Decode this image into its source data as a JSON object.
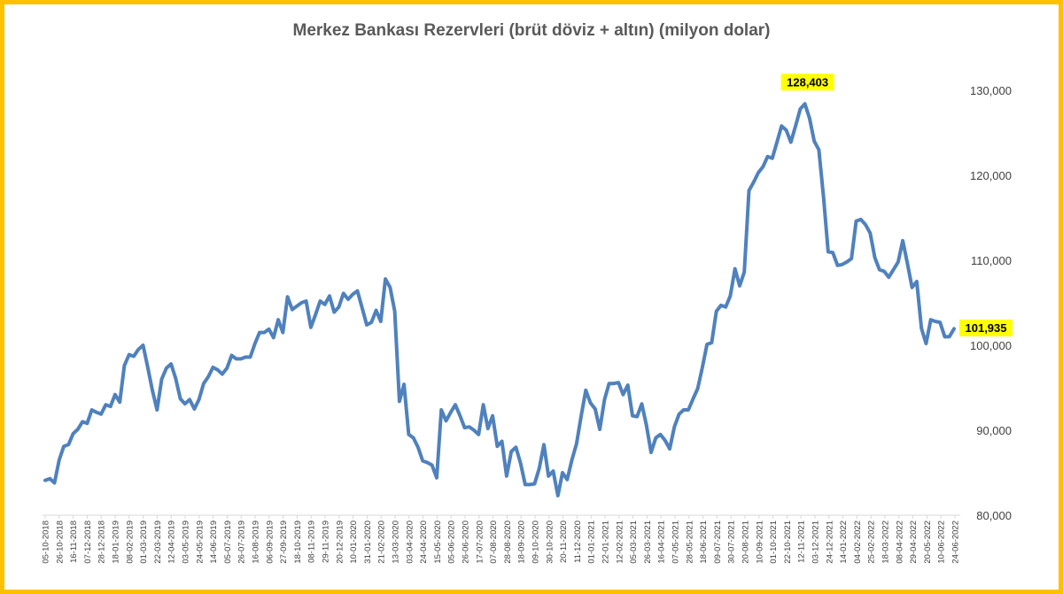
{
  "chart_data": {
    "type": "line",
    "title": "Merkez Bankası Rezervleri (brüt döviz + altın) (milyon dolar)",
    "xlabel": "",
    "ylabel": "",
    "ylim": [
      80000,
      130000
    ],
    "y_ticks": [
      "80,000",
      "90,000",
      "100,000",
      "110,000",
      "120,000",
      "130,000"
    ],
    "y_tick_values": [
      80000,
      90000,
      100000,
      110000,
      120000,
      130000
    ],
    "y_axis_position": "right",
    "grid": false,
    "line_color": "#4F81BD",
    "highlight_color": "#FFFF00",
    "x_ticks": [
      "05-10-2018",
      "26-10-2018",
      "16-11-2018",
      "07-12-2018",
      "28-12-2018",
      "18-01-2019",
      "08-02-2019",
      "01-03-2019",
      "22-03-2019",
      "12-04-2019",
      "03-05-2019",
      "24-05-2019",
      "14-06-2019",
      "05-07-2019",
      "26-07-2019",
      "16-08-2019",
      "06-09-2019",
      "27-09-2019",
      "18-10-2019",
      "08-11-2019",
      "29-11-2019",
      "20-12-2019",
      "10-01-2020",
      "31-01-2020",
      "21-02-2020",
      "13-03-2020",
      "03-04-2020",
      "24-04-2020",
      "15-05-2020",
      "05-06-2020",
      "26-06-2020",
      "17-07-2020",
      "07-08-2020",
      "28-08-2020",
      "18-09-2020",
      "09-10-2020",
      "30-10-2020",
      "20-11-2020",
      "11-12-2020",
      "01-01-2021",
      "22-01-2021",
      "12-02-2021",
      "05-03-2021",
      "26-03-2021",
      "16-04-2021",
      "07-05-2021",
      "28-05-2021",
      "18-06-2021",
      "09-07-2021",
      "30-07-2021",
      "20-08-2021",
      "10-09-2021",
      "01-10-2021",
      "22-10-2021",
      "12-11-2021",
      "03-12-2021",
      "24-12-2021",
      "14-01-2022",
      "04-02-2022",
      "25-02-2022",
      "18-03-2022",
      "08-04-2022",
      "29-04-2022",
      "20-05-2022",
      "10-06-2022",
      "24-06-2022"
    ],
    "series": [
      {
        "name": "",
        "values": [
          84100,
          84300,
          83800,
          86500,
          88100,
          88300,
          89600,
          90100,
          91000,
          90800,
          92400,
          92100,
          91900,
          93000,
          92800,
          94200,
          93300,
          97600,
          98900,
          98700,
          99500,
          100000,
          97400,
          94700,
          92400,
          96000,
          97300,
          97800,
          96100,
          93700,
          93100,
          93600,
          92500,
          93600,
          95500,
          96300,
          97400,
          97100,
          96600,
          97300,
          98800,
          98400,
          98400,
          98600,
          98600,
          100200,
          101500,
          101500,
          101900,
          100900,
          103000,
          101500,
          105700,
          104200,
          104600,
          105000,
          105200,
          102100,
          103600,
          105200,
          104800,
          105800,
          103900,
          104500,
          106100,
          105400,
          106000,
          106400,
          104400,
          102400,
          102700,
          104100,
          102800,
          107800,
          106800,
          104000,
          93400,
          95400,
          89500,
          89100,
          88000,
          86400,
          86200,
          85900,
          84400,
          92400,
          91100,
          92100,
          93000,
          91700,
          90300,
          90400,
          90000,
          89500,
          93000,
          90200,
          91700,
          88100,
          88700,
          84600,
          87500,
          88000,
          86100,
          83600,
          83600,
          83700,
          85500,
          88300,
          84600,
          85200,
          82300,
          85000,
          84200,
          86500,
          88400,
          91700,
          94700,
          93200,
          92500,
          90100,
          93600,
          95500,
          95500,
          95600,
          94200,
          95300,
          91700,
          91600,
          93100,
          90600,
          87400,
          89100,
          89500,
          88800,
          87800,
          90400,
          91900,
          92400,
          92400,
          93700,
          94900,
          97400,
          100100,
          100300,
          104000,
          104700,
          104500,
          105800,
          109000,
          107000,
          108600,
          118200,
          119200,
          120300,
          121000,
          122200,
          122000,
          123900,
          125800,
          125300,
          123900,
          125800,
          127800,
          128403,
          126700,
          124000,
          123000,
          117400,
          111000,
          110900,
          109400,
          109500,
          109800,
          110200,
          114600,
          114800,
          114200,
          113200,
          110300,
          108900,
          108700,
          108000,
          108900,
          109800,
          112300,
          109600,
          106800,
          107500,
          102000,
          100200,
          103000,
          102800,
          102700,
          101000,
          101000,
          101935
        ]
      }
    ],
    "annotations": [
      {
        "label": "128,403",
        "value": 128403,
        "position": "peak"
      },
      {
        "label": "101,935",
        "value": 101935,
        "position": "last"
      }
    ]
  }
}
